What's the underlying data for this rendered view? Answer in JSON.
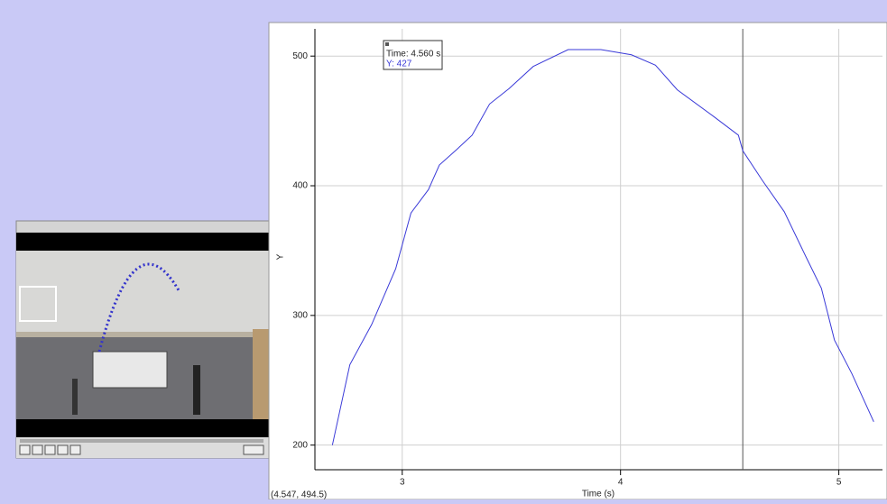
{
  "chart_data": {
    "type": "line",
    "x_label": "Time (s)",
    "y_label": "Y",
    "x": [
      2.68,
      2.76,
      2.86,
      2.97,
      3.04,
      3.12,
      3.17,
      3.25,
      3.32,
      3.4,
      3.49,
      3.6,
      3.76,
      3.91,
      4.05,
      4.16,
      4.26,
      4.43,
      4.54,
      4.56,
      4.65,
      4.75,
      4.85,
      4.92,
      4.98,
      5.06,
      5.16
    ],
    "values": [
      200,
      262,
      293,
      336,
      379,
      397,
      416,
      428,
      439,
      463,
      475,
      492,
      505,
      505,
      501,
      493,
      474,
      453,
      439,
      427,
      404,
      380,
      345,
      321,
      281,
      255,
      218
    ],
    "color": "#3a3ad8",
    "xlim": [
      2.6,
      5.2
    ],
    "ylim": [
      181,
      521
    ],
    "xticks": [
      3,
      4,
      5
    ],
    "yticks": [
      200,
      300,
      400,
      500
    ],
    "grid": true,
    "cursor_x": 4.56
  },
  "tooltip": {
    "time": "Time: 4.560 s",
    "y": "Y: 427"
  },
  "status": {
    "coordinates": "(4.547, 494.5)"
  }
}
